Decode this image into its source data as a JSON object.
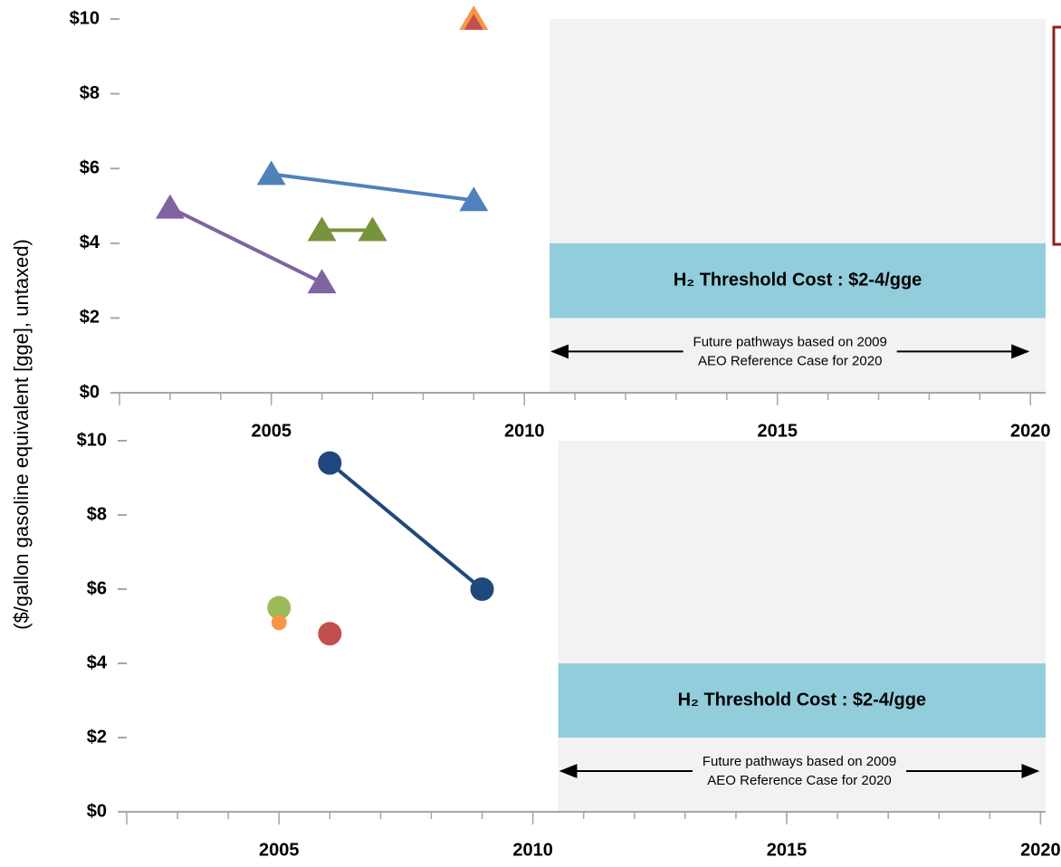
{
  "ylabel": "($/gallon gasoline equivalent [gge], untaxed)",
  "chart_data": [
    {
      "type": "scatter",
      "xlim": [
        2002,
        2020.3
      ],
      "ylim": [
        0,
        10
      ],
      "xticks": [
        2005,
        2010,
        2015,
        2020
      ],
      "xminor_ticks": [
        2003,
        2004,
        2005,
        2006,
        2007,
        2008,
        2009,
        2010,
        2011,
        2012,
        2013,
        2014,
        2015,
        2016,
        2017,
        2018,
        2019,
        2020
      ],
      "yticks": [
        {
          "value": 0,
          "label": "$0"
        },
        {
          "value": 2,
          "label": "$2"
        },
        {
          "value": 4,
          "label": "$4"
        },
        {
          "value": 6,
          "label": "$6"
        },
        {
          "value": 8,
          "label": "$8"
        },
        {
          "value": 10,
          "label": "$10"
        }
      ],
      "future_region": {
        "xlim": [
          2010.5,
          2020
        ],
        "color": "#f2f2f2",
        "lines": [
          "Future pathways based on 2009",
          "AEO Reference Case for 2020"
        ]
      },
      "threshold_band": {
        "range": [
          2,
          4
        ],
        "color": "#92cddc",
        "label": "H₂ Threshold Cost : $2-4/gge"
      },
      "series": [
        {
          "color": "#f79646",
          "marker": "triangle",
          "x": [
            2009
          ],
          "values": [
            10
          ]
        },
        {
          "color": "#c0504d",
          "marker": "triangle",
          "x": [
            2009
          ],
          "values": [
            9.9
          ]
        },
        {
          "color": "#4f81bd",
          "marker": "triangle",
          "x": [
            2005,
            2009
          ],
          "values": [
            5.85,
            5.15
          ]
        },
        {
          "color": "#77933c",
          "marker": "triangle",
          "x": [
            2006,
            2007
          ],
          "values": [
            4.35,
            4.35
          ]
        },
        {
          "color": "#8064a2",
          "marker": "triangle",
          "x": [
            2003,
            2006
          ],
          "values": [
            4.95,
            2.95
          ]
        }
      ]
    },
    {
      "type": "scatter",
      "xlim": [
        2002,
        2020.1
      ],
      "ylim": [
        0,
        10
      ],
      "xticks": [
        2005,
        2010,
        2015,
        2020
      ],
      "xminor_ticks": [
        2003,
        2004,
        2005,
        2006,
        2007,
        2008,
        2009,
        2010,
        2011,
        2012,
        2013,
        2014,
        2015,
        2016,
        2017,
        2018,
        2019,
        2020
      ],
      "yticks": [
        {
          "value": 0,
          "label": "$0"
        },
        {
          "value": 2,
          "label": "$2"
        },
        {
          "value": 4,
          "label": "$4"
        },
        {
          "value": 6,
          "label": "$6"
        },
        {
          "value": 8,
          "label": "$8"
        },
        {
          "value": 10,
          "label": "$10"
        }
      ],
      "future_region": {
        "xlim": [
          2010.5,
          2020
        ],
        "color": "#f2f2f2",
        "lines": [
          "Future pathways based on 2009",
          "AEO Reference Case for 2020"
        ]
      },
      "threshold_band": {
        "range": [
          2,
          4
        ],
        "color": "#92cddc",
        "label": "H₂ Threshold Cost : $2-4/gge"
      },
      "series": [
        {
          "color": "#1f497d",
          "marker": "circle",
          "x": [
            2006,
            2009
          ],
          "values": [
            9.4,
            6.0
          ]
        },
        {
          "color": "#9bbb59",
          "marker": "circle",
          "x": [
            2005
          ],
          "values": [
            5.5
          ]
        },
        {
          "color": "#f79646",
          "marker": "circle",
          "x": [
            2005
          ],
          "values": [
            5.1
          ]
        },
        {
          "color": "#c0504d",
          "marker": "circle",
          "x": [
            2006
          ],
          "values": [
            4.8
          ]
        }
      ]
    }
  ]
}
